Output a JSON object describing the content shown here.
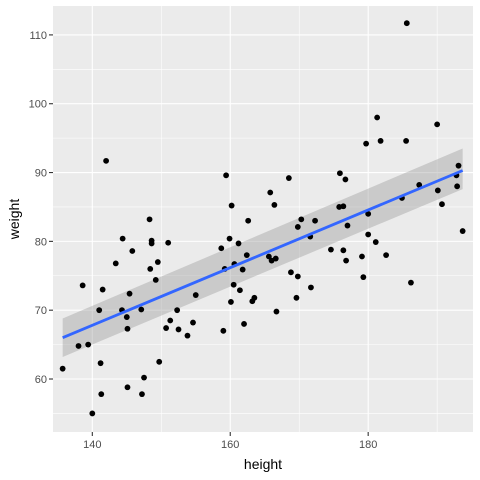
{
  "chart_data": {
    "type": "scatter",
    "xlabel": "height",
    "ylabel": "weight",
    "xlim": [
      134.3,
      195.2
    ],
    "ylim": [
      52.3,
      114.2
    ],
    "x_ticks": [
      140,
      160,
      180
    ],
    "y_ticks": [
      60,
      70,
      80,
      90,
      100,
      110
    ],
    "x_tick_labels": [
      "140",
      "160",
      "180"
    ],
    "y_tick_labels": [
      "60",
      "70",
      "80",
      "90",
      "100",
      "110"
    ],
    "grid": true,
    "legend": "none",
    "points": [
      {
        "x": 135.7,
        "y": 61.5
      },
      {
        "x": 138.0,
        "y": 64.8
      },
      {
        "x": 138.6,
        "y": 73.6
      },
      {
        "x": 139.4,
        "y": 65.0
      },
      {
        "x": 140.0,
        "y": 55.0
      },
      {
        "x": 141.0,
        "y": 70.0
      },
      {
        "x": 141.2,
        "y": 62.3
      },
      {
        "x": 141.3,
        "y": 57.8
      },
      {
        "x": 141.5,
        "y": 73.0
      },
      {
        "x": 142.0,
        "y": 91.7
      },
      {
        "x": 143.4,
        "y": 76.8
      },
      {
        "x": 144.3,
        "y": 70.0
      },
      {
        "x": 144.4,
        "y": 80.4
      },
      {
        "x": 145.0,
        "y": 69.0
      },
      {
        "x": 145.1,
        "y": 67.3
      },
      {
        "x": 145.1,
        "y": 58.8
      },
      {
        "x": 145.4,
        "y": 72.4
      },
      {
        "x": 145.8,
        "y": 78.6
      },
      {
        "x": 147.1,
        "y": 70.1
      },
      {
        "x": 147.2,
        "y": 57.8
      },
      {
        "x": 147.5,
        "y": 60.2
      },
      {
        "x": 148.3,
        "y": 83.2
      },
      {
        "x": 148.4,
        "y": 76.0
      },
      {
        "x": 148.6,
        "y": 79.7
      },
      {
        "x": 148.6,
        "y": 80.1
      },
      {
        "x": 149.2,
        "y": 74.4
      },
      {
        "x": 149.5,
        "y": 77.0
      },
      {
        "x": 149.7,
        "y": 62.5
      },
      {
        "x": 150.7,
        "y": 67.4
      },
      {
        "x": 151.0,
        "y": 79.8
      },
      {
        "x": 151.3,
        "y": 68.5
      },
      {
        "x": 152.3,
        "y": 70.0
      },
      {
        "x": 152.5,
        "y": 67.2
      },
      {
        "x": 153.8,
        "y": 66.3
      },
      {
        "x": 154.6,
        "y": 68.2
      },
      {
        "x": 155.0,
        "y": 72.2
      },
      {
        "x": 158.7,
        "y": 79.0
      },
      {
        "x": 159.0,
        "y": 67.0
      },
      {
        "x": 159.2,
        "y": 76.0
      },
      {
        "x": 159.4,
        "y": 89.6
      },
      {
        "x": 159.9,
        "y": 80.4
      },
      {
        "x": 160.1,
        "y": 71.2
      },
      {
        "x": 160.2,
        "y": 85.2
      },
      {
        "x": 160.5,
        "y": 73.7
      },
      {
        "x": 160.6,
        "y": 76.7
      },
      {
        "x": 161.2,
        "y": 79.7
      },
      {
        "x": 161.4,
        "y": 72.9
      },
      {
        "x": 161.8,
        "y": 75.9
      },
      {
        "x": 162.0,
        "y": 68.0
      },
      {
        "x": 162.4,
        "y": 78.0
      },
      {
        "x": 162.6,
        "y": 83.0
      },
      {
        "x": 163.2,
        "y": 71.3
      },
      {
        "x": 163.5,
        "y": 71.8
      },
      {
        "x": 165.6,
        "y": 77.8
      },
      {
        "x": 165.8,
        "y": 87.1
      },
      {
        "x": 166.0,
        "y": 77.2
      },
      {
        "x": 166.4,
        "y": 85.3
      },
      {
        "x": 166.6,
        "y": 77.5
      },
      {
        "x": 166.7,
        "y": 69.8
      },
      {
        "x": 168.5,
        "y": 89.2
      },
      {
        "x": 168.8,
        "y": 75.5
      },
      {
        "x": 169.6,
        "y": 71.8
      },
      {
        "x": 169.8,
        "y": 74.9
      },
      {
        "x": 169.8,
        "y": 82.1
      },
      {
        "x": 170.3,
        "y": 83.2
      },
      {
        "x": 171.6,
        "y": 80.7
      },
      {
        "x": 171.7,
        "y": 73.3
      },
      {
        "x": 172.3,
        "y": 83.0
      },
      {
        "x": 174.6,
        "y": 78.8
      },
      {
        "x": 175.8,
        "y": 85.0
      },
      {
        "x": 175.9,
        "y": 89.9
      },
      {
        "x": 176.4,
        "y": 85.1
      },
      {
        "x": 176.4,
        "y": 78.7
      },
      {
        "x": 176.7,
        "y": 89.0
      },
      {
        "x": 176.8,
        "y": 77.2
      },
      {
        "x": 177.0,
        "y": 82.3
      },
      {
        "x": 179.1,
        "y": 77.8
      },
      {
        "x": 179.3,
        "y": 74.8
      },
      {
        "x": 179.7,
        "y": 94.2
      },
      {
        "x": 180.0,
        "y": 81.0
      },
      {
        "x": 180.0,
        "y": 84.0
      },
      {
        "x": 181.1,
        "y": 79.9
      },
      {
        "x": 181.3,
        "y": 98.0
      },
      {
        "x": 181.8,
        "y": 94.6
      },
      {
        "x": 182.6,
        "y": 78.0
      },
      {
        "x": 184.9,
        "y": 86.3
      },
      {
        "x": 185.5,
        "y": 94.6
      },
      {
        "x": 185.6,
        "y": 111.7
      },
      {
        "x": 186.2,
        "y": 74.0
      },
      {
        "x": 187.4,
        "y": 88.2
      },
      {
        "x": 190.0,
        "y": 97.0
      },
      {
        "x": 190.1,
        "y": 87.4
      },
      {
        "x": 190.7,
        "y": 85.4
      },
      {
        "x": 192.8,
        "y": 89.6
      },
      {
        "x": 192.9,
        "y": 88.0
      },
      {
        "x": 193.1,
        "y": 91.0
      },
      {
        "x": 193.7,
        "y": 81.5
      }
    ],
    "smooth": {
      "method": "linear fit with confidence band",
      "x": [
        135.7,
        193.7
      ],
      "fit": [
        66.0,
        90.3
      ],
      "ci_lower": [
        63.2,
        87.6
      ],
      "ci_upper": [
        68.8,
        93.5
      ]
    },
    "colors": {
      "point": "#000000",
      "line": "#3366FF",
      "ribbon": "#999999",
      "panel": "#EBEBEB",
      "grid": "#FFFFFF"
    }
  }
}
